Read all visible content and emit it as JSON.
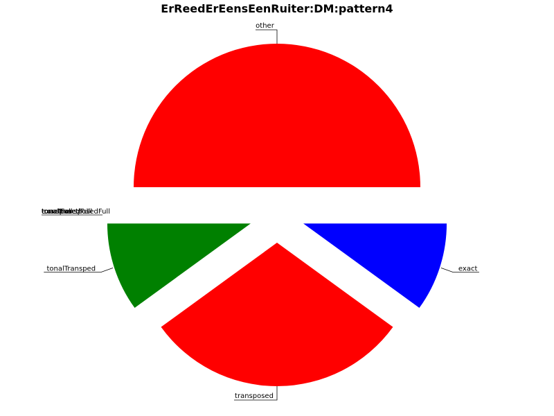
{
  "chart_data": {
    "type": "pie",
    "title": "ErReedErEensEenRuiter:DM:pattern4",
    "slices": [
      {
        "label": "other",
        "value": 180,
        "color": "#ff0000"
      },
      {
        "label": "tonalTransped",
        "value": 36,
        "color": "#008000"
      },
      {
        "label": "transposed",
        "value": 108,
        "color": "#ff0000"
      },
      {
        "label": "exact",
        "value": 36,
        "color": "#0000ff"
      }
    ],
    "zero_slices": [
      {
        "label": "tonalExact",
        "value": 0
      },
      {
        "label": "transposedFull",
        "value": 0
      },
      {
        "label": "exactFull",
        "value": 0
      },
      {
        "label": "tonalTransposedFull",
        "value": 0
      },
      {
        "label": "tonalExactFull",
        "value": 0
      }
    ],
    "legend": false,
    "grid": false
  }
}
